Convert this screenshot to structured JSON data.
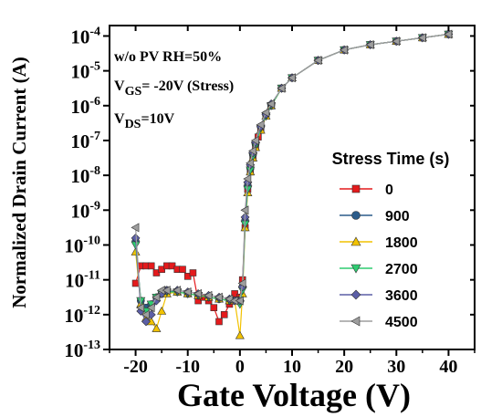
{
  "chart_data": {
    "type": "scatter",
    "xlabel": "Gate Voltage (V)",
    "ylabel": "Normalized Drain Current (A)",
    "xlim": [
      -25,
      45
    ],
    "ylim_exp": [
      -13,
      -3.7
    ],
    "y_scale": "log",
    "x_ticks": [
      -20,
      -10,
      0,
      10,
      20,
      30,
      40
    ],
    "x_tick_labels": [
      "-20",
      "-10",
      "0",
      "10",
      "20",
      "30",
      "40"
    ],
    "y_ticks_exp": [
      -13,
      -12,
      -11,
      -10,
      -9,
      -8,
      -7,
      -6,
      -5,
      -4
    ],
    "annotations": {
      "line1": "w/o  PV  RH=50%",
      "line2_main": "V",
      "line2_sub": "GS",
      "line2_rest": "= -20V (Stress)",
      "line3_main": "V",
      "line3_sub": "DS",
      "line3_rest": "=10V"
    },
    "legend_title": "Stress Time (s)",
    "legend_position": "right",
    "series": [
      {
        "name": "0",
        "color": "#e41a1c",
        "marker": "square",
        "x": [
          -20,
          -19,
          -18,
          -17,
          -16,
          -15,
          -14,
          -13,
          -12,
          -11,
          -10,
          -9,
          -8,
          -7,
          -6,
          -5,
          -4,
          -3,
          -2,
          -1,
          0,
          0.5,
          1,
          1.5,
          2,
          2.5,
          3,
          3.5,
          4,
          5,
          6,
          8,
          10,
          15,
          20,
          25,
          30,
          35,
          40
        ],
        "y_exp": [
          -11.1,
          -10.6,
          -10.6,
          -10.6,
          -10.8,
          -10.7,
          -10.6,
          -10.6,
          -10.7,
          -10.7,
          -10.9,
          -10.8,
          -11.6,
          -11.5,
          -11.6,
          -11.8,
          -12.2,
          -12,
          -11.7,
          -11.4,
          -11.5,
          -11,
          -9.5,
          -8.4,
          -7.9,
          -7.5,
          -7.2,
          -6.9,
          -6.7,
          -6.3,
          -6,
          -5.5,
          -5.2,
          -4.7,
          -4.4,
          -4.25,
          -4.15,
          -4.05,
          -3.95
        ]
      },
      {
        "name": "900",
        "color": "#2c5c8a",
        "marker": "circle",
        "x": [
          -20,
          -19,
          -18,
          -17,
          -16,
          -15,
          -14,
          -12,
          -10,
          -8,
          -6,
          -4,
          -2,
          -1,
          0,
          0.5,
          1,
          1.5,
          2,
          2.5,
          3,
          4,
          5,
          6,
          8,
          10,
          15,
          20,
          25,
          30,
          35,
          40
        ],
        "y_exp": [
          -9.9,
          -11.6,
          -11.8,
          -11.7,
          -11.5,
          -11.4,
          -11.3,
          -11.35,
          -11.4,
          -11.45,
          -11.5,
          -11.55,
          -11.6,
          -11.6,
          -11.6,
          -11.2,
          -9.3,
          -8.3,
          -7.8,
          -7.4,
          -7.1,
          -6.6,
          -6.25,
          -6,
          -5.5,
          -5.2,
          -4.7,
          -4.4,
          -4.25,
          -4.15,
          -4.05,
          -3.95
        ]
      },
      {
        "name": "1800",
        "color": "#f2c200",
        "marker": "triangle-up",
        "x": [
          -20,
          -19,
          -18,
          -17,
          -16,
          -15,
          -14,
          -12,
          -10,
          -8,
          -6,
          -4,
          -2,
          -1,
          0,
          0.5,
          1,
          1.5,
          2,
          2.5,
          3,
          4,
          5,
          6,
          8,
          10,
          15,
          20,
          25,
          30,
          35,
          40
        ],
        "y_exp": [
          -10.2,
          -11.7,
          -12.1,
          -12.2,
          -12.4,
          -11.9,
          -11.4,
          -11.35,
          -11.4,
          -11.45,
          -11.5,
          -11.55,
          -11.6,
          -11.6,
          -12.6,
          -11.4,
          -9.5,
          -8.5,
          -7.9,
          -7.5,
          -7.2,
          -6.7,
          -6.3,
          -6,
          -5.5,
          -5.2,
          -4.7,
          -4.4,
          -4.25,
          -4.15,
          -4.05,
          -3.95
        ]
      },
      {
        "name": "2700",
        "color": "#2ecc71",
        "marker": "triangle-down",
        "x": [
          -20,
          -19,
          -18,
          -17,
          -16,
          -15,
          -14,
          -12,
          -10,
          -8,
          -6,
          -4,
          -2,
          -1,
          0,
          0.5,
          1,
          1.5,
          2,
          2.5,
          3,
          4,
          5,
          6,
          8,
          10,
          15,
          20,
          25,
          30,
          35,
          40
        ],
        "y_exp": [
          -10,
          -11.6,
          -11.9,
          -11.7,
          -11.5,
          -11.4,
          -11.35,
          -11.35,
          -11.4,
          -11.45,
          -11.5,
          -11.55,
          -11.6,
          -11.6,
          -11.7,
          -11.3,
          -9.4,
          -8.4,
          -7.85,
          -7.45,
          -7.15,
          -6.65,
          -6.3,
          -6,
          -5.5,
          -5.2,
          -4.7,
          -4.4,
          -4.25,
          -4.15,
          -4.05,
          -3.95
        ]
      },
      {
        "name": "3600",
        "color": "#5b5ea6",
        "marker": "diamond",
        "x": [
          -20,
          -19,
          -18,
          -17,
          -16,
          -15,
          -14,
          -12,
          -10,
          -8,
          -6,
          -4,
          -2,
          -1,
          0,
          0.5,
          1,
          1.5,
          2,
          2.5,
          3,
          4,
          5,
          6,
          8,
          10,
          15,
          20,
          25,
          30,
          35,
          40
        ],
        "y_exp": [
          -9.8,
          -11.9,
          -12.2,
          -12,
          -11.6,
          -11.4,
          -11.3,
          -11.3,
          -11.35,
          -11.4,
          -11.45,
          -11.5,
          -11.55,
          -11.6,
          -11.6,
          -11.2,
          -9.2,
          -8.2,
          -7.7,
          -7.35,
          -7.05,
          -6.6,
          -6.25,
          -5.95,
          -5.5,
          -5.2,
          -4.7,
          -4.4,
          -4.25,
          -4.15,
          -4.05,
          -3.95
        ]
      },
      {
        "name": "4500",
        "color": "#9e9e9e",
        "marker": "triangle-left",
        "x": [
          -20,
          -19,
          -18,
          -17,
          -16,
          -15,
          -14,
          -12,
          -10,
          -8,
          -6,
          -4,
          -2,
          -1,
          0,
          0.5,
          1,
          1.5,
          2,
          2.5,
          3,
          4,
          5,
          6,
          8,
          10,
          15,
          20,
          25,
          30,
          35,
          40
        ],
        "y_exp": [
          -9.5,
          -11.8,
          -12,
          -11.8,
          -11.5,
          -11.3,
          -11.3,
          -11.3,
          -11.35,
          -11.4,
          -11.45,
          -11.5,
          -11.55,
          -11.6,
          -11.6,
          -11.1,
          -9,
          -8.1,
          -7.65,
          -7.3,
          -7.0,
          -6.55,
          -6.2,
          -5.95,
          -5.5,
          -5.2,
          -4.7,
          -4.4,
          -4.25,
          -4.15,
          -4.05,
          -3.95
        ]
      }
    ]
  }
}
